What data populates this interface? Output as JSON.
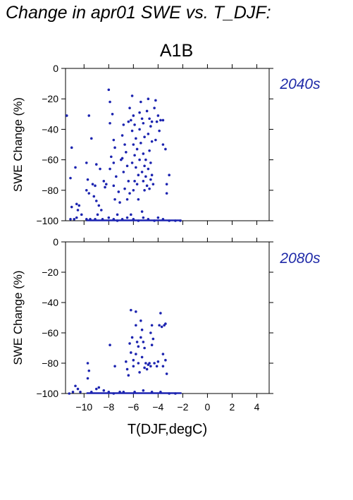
{
  "figure_title": "Change in apr01 SWE vs. T_DJF:",
  "scenario": "A1B",
  "colors": {
    "points": "#1c24b0",
    "labels": "#1f2aa8",
    "axis": "#000000"
  },
  "chart_data": [
    {
      "type": "scatter",
      "panel_label": "2040s",
      "ylabel": "SWE Change (%)",
      "xlabel": "",
      "xlim": [
        -11.5,
        5.0
      ],
      "ylim": [
        -100,
        0
      ],
      "xticks": [
        -10,
        -8,
        -6,
        -4,
        -2,
        0,
        2,
        4
      ],
      "yticks": [
        0,
        -20,
        -40,
        -60,
        -80,
        -100
      ],
      "xtick_labels_shown": false,
      "ytick_labels": [
        "0",
        "−20",
        "−40",
        "−60",
        "−80",
        "−100"
      ],
      "grid": false,
      "points": [
        [
          -11.4,
          -31
        ],
        [
          -11.0,
          -52
        ],
        [
          -10.7,
          -65
        ],
        [
          -11.1,
          -72
        ],
        [
          -11.0,
          -91
        ],
        [
          -10.6,
          -89
        ],
        [
          -10.4,
          -90
        ],
        [
          -10.5,
          -93
        ],
        [
          -11.1,
          -99
        ],
        [
          -10.8,
          -99
        ],
        [
          -10.6,
          -98
        ],
        [
          -9.8,
          -62
        ],
        [
          -9.6,
          -31
        ],
        [
          -9.4,
          -46
        ],
        [
          -9.7,
          -73
        ],
        [
          -9.3,
          -76
        ],
        [
          -9.1,
          -77
        ],
        [
          -9.8,
          -80
        ],
        [
          -9.6,
          -82
        ],
        [
          -9.2,
          -84
        ],
        [
          -9.0,
          -87
        ],
        [
          -8.8,
          -90
        ],
        [
          -8.6,
          -93
        ],
        [
          -8.4,
          -74
        ],
        [
          -8.2,
          -76
        ],
        [
          -9.0,
          -63
        ],
        [
          -8.7,
          -66
        ],
        [
          -8.0,
          -14
        ],
        [
          -7.9,
          -22
        ],
        [
          -7.7,
          -30
        ],
        [
          -7.9,
          -36
        ],
        [
          -7.6,
          -47
        ],
        [
          -7.5,
          -52
        ],
        [
          -7.8,
          -58
        ],
        [
          -7.6,
          -62
        ],
        [
          -7.9,
          -66
        ],
        [
          -7.4,
          -71
        ],
        [
          -7.6,
          -77
        ],
        [
          -7.2,
          -81
        ],
        [
          -7.5,
          -86
        ],
        [
          -7.1,
          -88
        ],
        [
          -6.8,
          -37
        ],
        [
          -6.9,
          -44
        ],
        [
          -6.7,
          -50
        ],
        [
          -6.6,
          -55
        ],
        [
          -6.9,
          -59
        ],
        [
          -6.5,
          -64
        ],
        [
          -6.8,
          -68
        ],
        [
          -6.4,
          -74
        ],
        [
          -6.7,
          -79
        ],
        [
          -6.3,
          -82
        ],
        [
          -6.5,
          -86
        ],
        [
          -6.1,
          -18
        ],
        [
          -6.3,
          -26
        ],
        [
          -6.0,
          -31
        ],
        [
          -6.2,
          -34
        ],
        [
          -5.9,
          -37
        ],
        [
          -6.1,
          -41
        ],
        [
          -5.8,
          -46
        ],
        [
          -6.0,
          -50
        ],
        [
          -5.7,
          -53
        ],
        [
          -5.9,
          -57
        ],
        [
          -6.1,
          -62
        ],
        [
          -5.8,
          -65
        ],
        [
          -5.6,
          -70
        ],
        [
          -5.9,
          -74
        ],
        [
          -5.7,
          -76
        ],
        [
          -6.0,
          -80
        ],
        [
          -5.6,
          -86
        ],
        [
          -5.4,
          -22
        ],
        [
          -5.5,
          -29
        ],
        [
          -5.3,
          -33
        ],
        [
          -5.2,
          -36
        ],
        [
          -5.5,
          -40
        ],
        [
          -5.1,
          -45
        ],
        [
          -5.4,
          -49
        ],
        [
          -5.2,
          -56
        ],
        [
          -5.5,
          -60
        ],
        [
          -5.1,
          -64
        ],
        [
          -5.3,
          -68
        ],
        [
          -5.0,
          -71
        ],
        [
          -5.2,
          -74
        ],
        [
          -4.9,
          -77
        ],
        [
          -5.1,
          -80
        ],
        [
          -4.8,
          -20
        ],
        [
          -4.9,
          -28
        ],
        [
          -4.7,
          -33
        ],
        [
          -4.6,
          -38
        ],
        [
          -4.8,
          -43
        ],
        [
          -4.5,
          -48
        ],
        [
          -4.7,
          -54
        ],
        [
          -4.6,
          -62
        ],
        [
          -4.8,
          -66
        ],
        [
          -4.5,
          -70
        ],
        [
          -4.6,
          -73
        ],
        [
          -4.4,
          -76
        ],
        [
          -4.7,
          -79
        ],
        [
          -4.2,
          -21
        ],
        [
          -4.3,
          -26
        ],
        [
          -4.0,
          -31
        ],
        [
          -4.1,
          -35
        ],
        [
          -3.9,
          -41
        ],
        [
          -4.2,
          -47
        ],
        [
          -3.8,
          -34
        ],
        [
          -3.6,
          -34
        ],
        [
          -3.6,
          -50
        ],
        [
          -3.4,
          -53
        ],
        [
          -3.3,
          -76
        ],
        [
          -3.3,
          -82
        ],
        [
          -3.1,
          -70
        ],
        [
          -4.5,
          -35
        ],
        [
          -5.0,
          -60
        ],
        [
          -6.4,
          -35
        ],
        [
          -7.0,
          -60
        ],
        [
          -8.3,
          -78
        ],
        [
          -8.9,
          -96
        ],
        [
          -7.3,
          -96
        ],
        [
          -6.2,
          -96
        ],
        [
          -5.3,
          -94
        ],
        [
          -10.2,
          -96
        ],
        [
          -9.8,
          -99
        ],
        [
          -9.5,
          -99
        ],
        [
          -9.1,
          -99
        ],
        [
          -8.5,
          -99
        ],
        [
          -8.0,
          -98
        ],
        [
          -7.6,
          -99
        ],
        [
          -7.3,
          -100
        ],
        [
          -6.9,
          -99
        ],
        [
          -6.5,
          -98
        ],
        [
          -6.0,
          -99
        ],
        [
          -5.6,
          -100
        ],
        [
          -5.2,
          -98
        ],
        [
          -4.8,
          -99
        ],
        [
          -4.3,
          -100
        ],
        [
          -4.0,
          -98
        ],
        [
          -3.6,
          -99
        ],
        [
          -3.1,
          -100
        ],
        [
          -2.6,
          -100
        ],
        [
          -2.2,
          -100
        ]
      ],
      "floor_segment": [
        -9.8,
        -2.1
      ]
    },
    {
      "type": "scatter",
      "panel_label": "2080s",
      "ylabel": "SWE Change (%)",
      "xlabel": "T(DJF,degC)",
      "xlim": [
        -11.5,
        5.0
      ],
      "ylim": [
        -100,
        0
      ],
      "xticks": [
        -10,
        -8,
        -6,
        -4,
        -2,
        0,
        2,
        4
      ],
      "xtick_labels": [
        "−10",
        "−8",
        "−6",
        "−4",
        "−2",
        "0",
        "2",
        "4"
      ],
      "yticks": [
        0,
        -20,
        -40,
        -60,
        -80,
        -100
      ],
      "ytick_labels": [
        "0",
        "−20",
        "−40",
        "−60",
        "−80",
        "−100"
      ],
      "grid": false,
      "points": [
        [
          -11.2,
          -100
        ],
        [
          -10.9,
          -99
        ],
        [
          -10.7,
          -95
        ],
        [
          -10.5,
          -97
        ],
        [
          -10.3,
          -99
        ],
        [
          -9.7,
          -80
        ],
        [
          -9.6,
          -85
        ],
        [
          -9.7,
          -90
        ],
        [
          -9.4,
          -99
        ],
        [
          -9.0,
          -97
        ],
        [
          -8.8,
          -96
        ],
        [
          -8.4,
          -98
        ],
        [
          -8.0,
          -99
        ],
        [
          -7.9,
          -68
        ],
        [
          -7.5,
          -82
        ],
        [
          -7.1,
          -99
        ],
        [
          -6.6,
          -79
        ],
        [
          -6.5,
          -84
        ],
        [
          -6.4,
          -88
        ],
        [
          -6.2,
          -45
        ],
        [
          -6.1,
          -63
        ],
        [
          -6.3,
          -67
        ],
        [
          -6.2,
          -73
        ],
        [
          -6.0,
          -78
        ],
        [
          -6.0,
          -82
        ],
        [
          -5.8,
          -46
        ],
        [
          -5.8,
          -55
        ],
        [
          -5.7,
          -66
        ],
        [
          -5.6,
          -69
        ],
        [
          -5.8,
          -74
        ],
        [
          -5.6,
          -80
        ],
        [
          -5.5,
          -86
        ],
        [
          -5.4,
          -52
        ],
        [
          -5.3,
          -58
        ],
        [
          -5.4,
          -63
        ],
        [
          -5.2,
          -66
        ],
        [
          -5.1,
          -70
        ],
        [
          -5.3,
          -76
        ],
        [
          -5.0,
          -80
        ],
        [
          -5.1,
          -83
        ],
        [
          -4.8,
          -81
        ],
        [
          -4.9,
          -84
        ],
        [
          -4.7,
          -80
        ],
        [
          -4.6,
          -82
        ],
        [
          -4.5,
          -55
        ],
        [
          -4.6,
          -60
        ],
        [
          -4.4,
          -64
        ],
        [
          -4.5,
          -68
        ],
        [
          -4.3,
          -80
        ],
        [
          -4.1,
          -82
        ],
        [
          -4.0,
          -79
        ],
        [
          -3.8,
          -47
        ],
        [
          -3.9,
          -55
        ],
        [
          -3.7,
          -56
        ],
        [
          -3.5,
          -55
        ],
        [
          -3.4,
          -54
        ],
        [
          -3.6,
          -74
        ],
        [
          -3.4,
          -78
        ],
        [
          -3.6,
          -82
        ],
        [
          -3.3,
          -87
        ],
        [
          -5.9,
          -99
        ],
        [
          -5.2,
          -98
        ],
        [
          -4.5,
          -99
        ],
        [
          -3.8,
          -99
        ],
        [
          -3.1,
          -100
        ],
        [
          -2.6,
          -100
        ],
        [
          -6.8,
          -99
        ],
        [
          -7.6,
          -100
        ]
      ],
      "floor_segment": [
        -9.8,
        -2.1
      ]
    }
  ]
}
